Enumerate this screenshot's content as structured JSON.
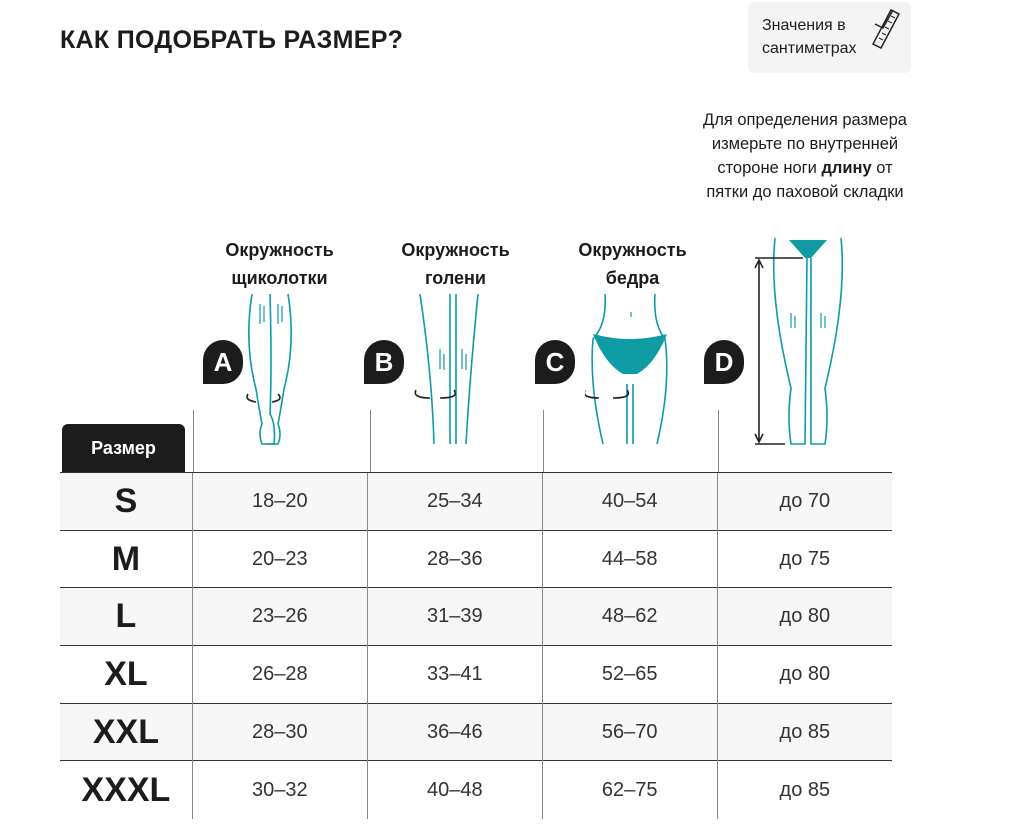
{
  "title": "КАК ПОДОБРАТЬ РАЗМЕР?",
  "badge": {
    "line1": "Значения в",
    "line2": "сантиметрах",
    "icon": "measuring-tape-icon"
  },
  "note": {
    "before": "Для определения размера измерьте по внутренней стороне ноги ",
    "bold": "длину",
    "after": " от пятки до паховой складки"
  },
  "columns": [
    {
      "letter": "A",
      "line1": "Окружность",
      "line2": "щиколотки"
    },
    {
      "letter": "B",
      "line1": "Окружность",
      "line2": "голени"
    },
    {
      "letter": "C",
      "line1": "Окружность",
      "line2": "бедра"
    },
    {
      "letter": "D",
      "line1": "",
      "line2": ""
    }
  ],
  "size_header": "Размер",
  "accent": "#0e9ba3",
  "rows": [
    {
      "size": "S",
      "values": [
        "18–20",
        "25–34",
        "40–54",
        "до 70"
      ]
    },
    {
      "size": "M",
      "values": [
        "20–23",
        "28–36",
        "44–58",
        "до 75"
      ]
    },
    {
      "size": "L",
      "values": [
        "23–26",
        "31–39",
        "48–62",
        "до 80"
      ]
    },
    {
      "size": "XL",
      "values": [
        "26–28",
        "33–41",
        "52–65",
        "до 80"
      ]
    },
    {
      "size": "XXL",
      "values": [
        "28–30",
        "36–46",
        "56–70",
        "до 85"
      ]
    },
    {
      "size": "XXXL",
      "values": [
        "30–32",
        "40–48",
        "62–75",
        "до 85"
      ]
    }
  ]
}
